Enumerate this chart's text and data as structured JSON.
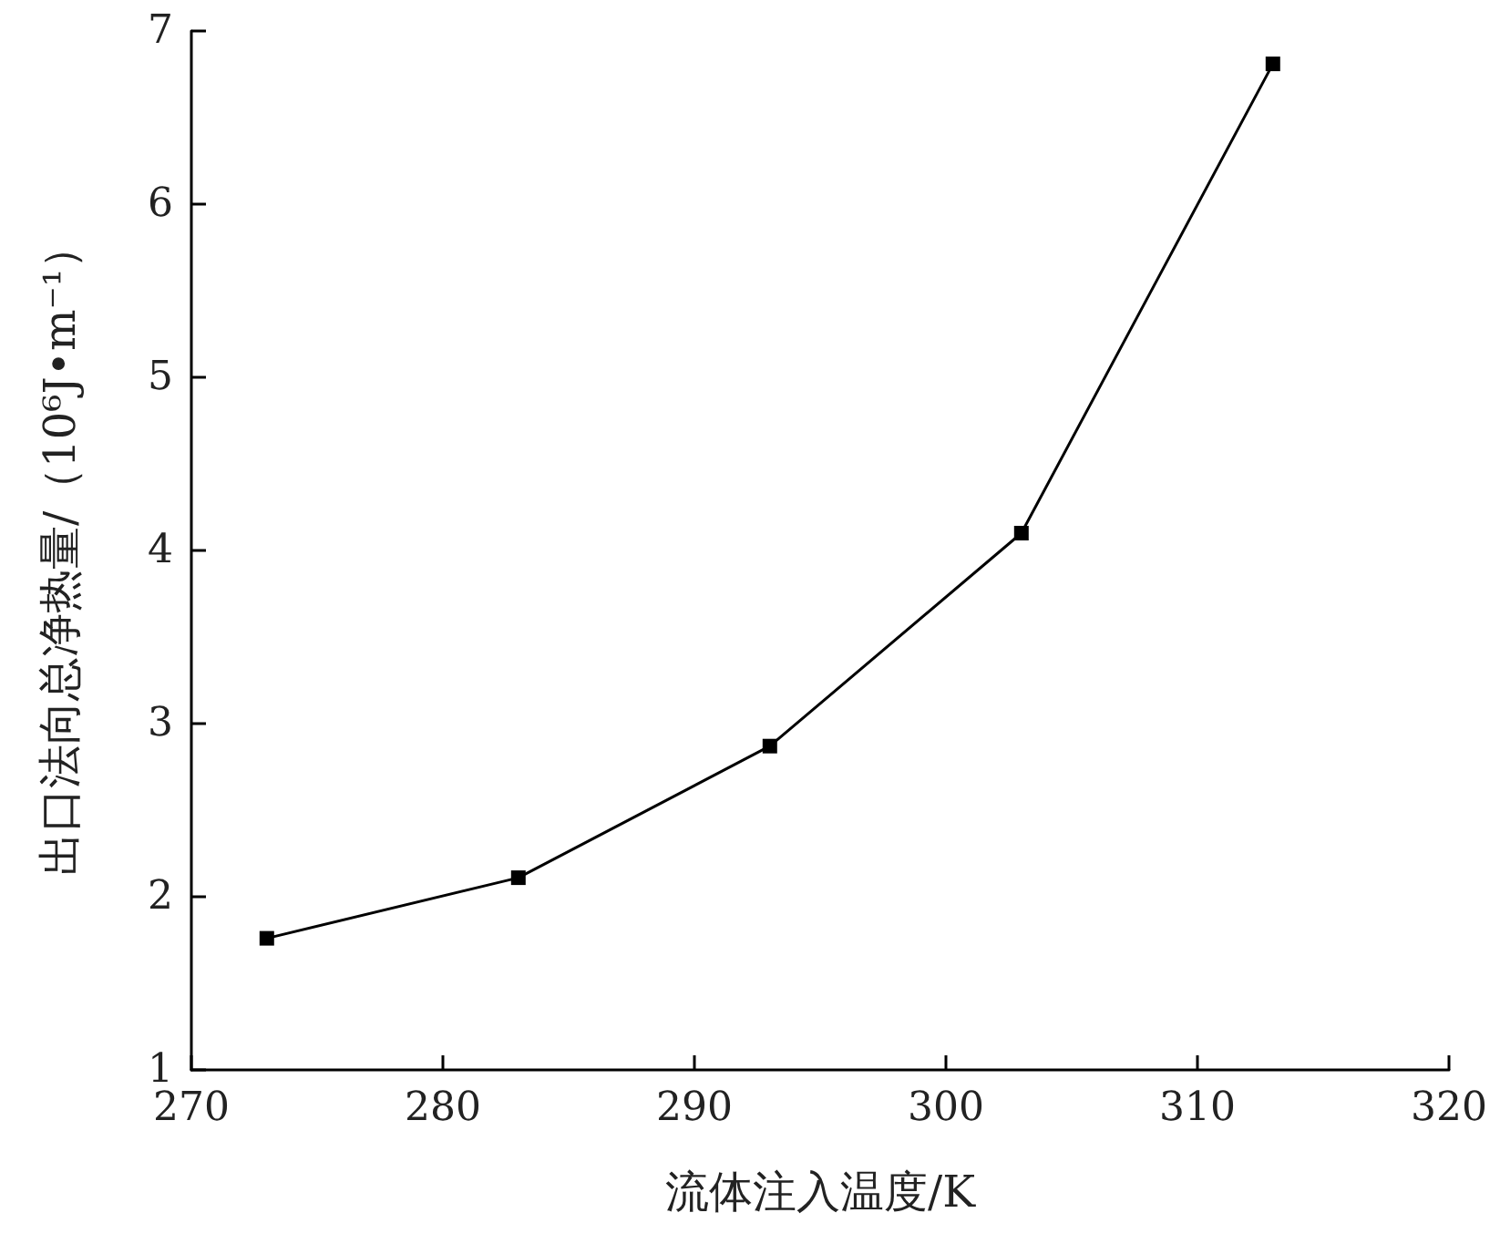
{
  "chart_data": {
    "type": "line",
    "xlabel": "流体注入温度/K",
    "ylabel": "出口法向总净热量/（10⁶J•m⁻¹）",
    "x": [
      273,
      283,
      293,
      303,
      313
    ],
    "series": [
      {
        "color": "#000000",
        "values": [
          1.76,
          2.11,
          2.87,
          4.1,
          6.81
        ]
      }
    ],
    "xlim": [
      270,
      320
    ],
    "xticks": [
      270,
      280,
      290,
      300,
      310,
      320
    ],
    "ylim": [
      1,
      7
    ],
    "yticks": [
      1,
      2,
      3,
      4,
      5,
      6,
      7
    ],
    "grid": false,
    "marker": "square",
    "line_style": "solid"
  }
}
